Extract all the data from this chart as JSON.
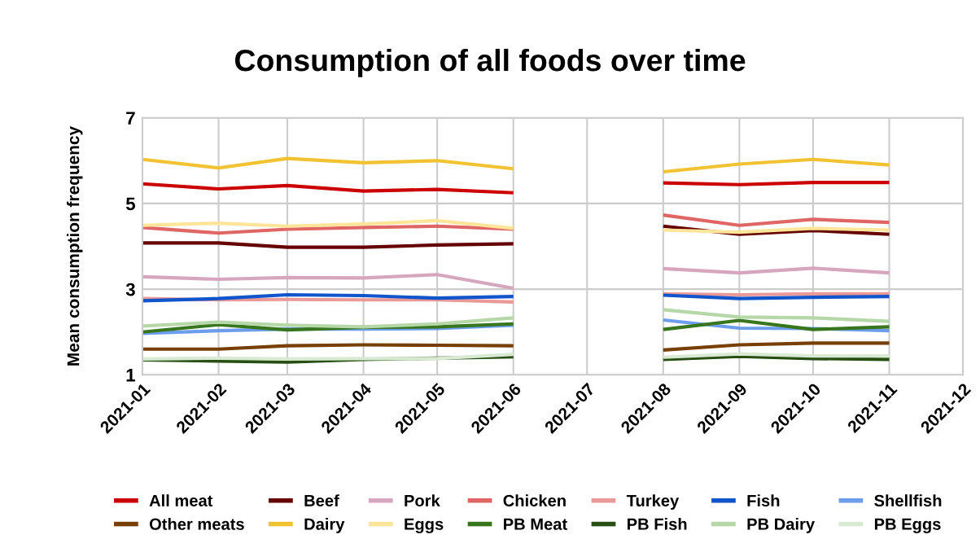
{
  "chart_data": {
    "type": "line",
    "title": "Consumption of all foods over time",
    "ylabel": "Mean consumption frequency",
    "x": [
      "2021-01",
      "2021-02",
      "2021-03",
      "2021-04",
      "2021-05",
      "2021-06",
      "2021-07",
      "2021-08",
      "2021-09",
      "2021-10",
      "2021-11"
    ],
    "xlim": [
      "2021-01",
      "2021-12"
    ],
    "xticks": [
      "2021-01",
      "2021-02",
      "2021-03",
      "2021-04",
      "2021-05",
      "2021-06",
      "2021-07",
      "2021-08",
      "2021-09",
      "2021-10",
      "2021-11",
      "2021-12"
    ],
    "ylim": [
      1,
      7
    ],
    "yticks": [
      1,
      3,
      5,
      7
    ],
    "grid": true,
    "legend": "bottom",
    "marker": "none",
    "line_style": "solid",
    "series": [
      {
        "name": "All meat",
        "color": "#cc0000",
        "values": [
          5.46,
          5.34,
          5.42,
          5.29,
          5.33,
          5.25,
          null,
          5.48,
          5.44,
          5.49,
          5.49
        ]
      },
      {
        "name": "Beef",
        "color": "#660000",
        "values": [
          4.08,
          4.08,
          3.98,
          3.98,
          4.03,
          4.06,
          null,
          4.47,
          4.28,
          4.37,
          4.28
        ]
      },
      {
        "name": "Pork",
        "color": "#d5a6bd",
        "values": [
          3.29,
          3.23,
          3.27,
          3.26,
          3.34,
          3.02,
          null,
          3.48,
          3.38,
          3.49,
          3.38
        ]
      },
      {
        "name": "Chicken",
        "color": "#e06666",
        "values": [
          4.44,
          4.31,
          4.4,
          4.44,
          4.47,
          4.4,
          null,
          4.73,
          4.49,
          4.63,
          4.56
        ]
      },
      {
        "name": "Turkey",
        "color": "#ea9999",
        "values": [
          2.78,
          2.75,
          2.76,
          2.75,
          2.75,
          2.7,
          null,
          2.89,
          2.87,
          2.89,
          2.89
        ]
      },
      {
        "name": "Fish",
        "color": "#1155cc",
        "values": [
          2.73,
          2.78,
          2.87,
          2.85,
          2.79,
          2.83,
          null,
          2.86,
          2.78,
          2.81,
          2.83
        ]
      },
      {
        "name": "Shellfish",
        "color": "#6d9eeb",
        "values": [
          1.97,
          2.03,
          2.07,
          2.07,
          2.08,
          2.16,
          null,
          2.28,
          2.09,
          2.08,
          2.03
        ]
      },
      {
        "name": "Other meats",
        "color": "#783f04",
        "values": [
          1.6,
          1.6,
          1.68,
          1.7,
          1.69,
          1.68,
          null,
          1.58,
          1.7,
          1.74,
          1.74
        ]
      },
      {
        "name": "Dairy",
        "color": "#f1c232",
        "values": [
          6.03,
          5.83,
          6.05,
          5.95,
          6.0,
          5.81,
          null,
          5.74,
          5.92,
          6.03,
          5.9
        ]
      },
      {
        "name": "Eggs",
        "color": "#ffe599",
        "values": [
          4.49,
          4.54,
          4.47,
          4.52,
          4.6,
          4.42,
          null,
          4.38,
          4.33,
          4.42,
          4.38
        ]
      },
      {
        "name": "PB Meat",
        "color": "#38761d",
        "values": [
          2.0,
          2.17,
          2.05,
          2.11,
          2.12,
          2.19,
          null,
          2.06,
          2.27,
          2.06,
          2.12
        ]
      },
      {
        "name": "PB Fish",
        "color": "#274e13",
        "values": [
          1.35,
          1.32,
          1.3,
          1.36,
          1.39,
          1.42,
          null,
          1.36,
          1.43,
          1.38,
          1.36
        ]
      },
      {
        "name": "PB Dairy",
        "color": "#b6d7a8",
        "values": [
          2.14,
          2.23,
          2.16,
          2.12,
          2.19,
          2.33,
          null,
          2.52,
          2.35,
          2.33,
          2.25
        ]
      },
      {
        "name": "PB Eggs",
        "color": "#d9ead3",
        "values": [
          1.37,
          1.39,
          1.37,
          1.38,
          1.38,
          1.48,
          null,
          1.41,
          1.49,
          1.44,
          1.44
        ]
      }
    ]
  }
}
